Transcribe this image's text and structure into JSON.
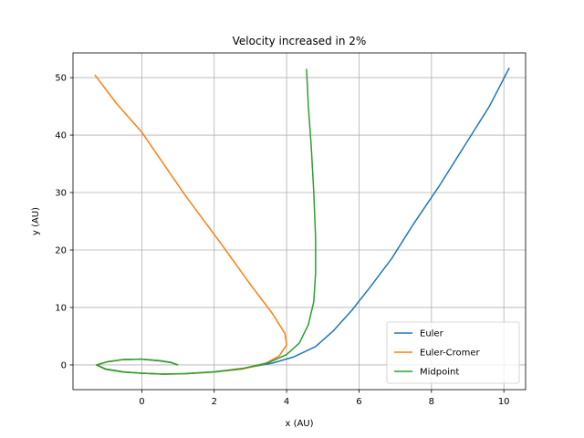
{
  "chart_data": {
    "type": "line",
    "title": "Velocity increased in 2%",
    "xlabel": "x (AU)",
    "ylabel": "y (AU)",
    "xlim": [
      -1.9,
      10.6
    ],
    "ylim": [
      -4.3,
      54.3
    ],
    "x_ticks": [
      0,
      2,
      4,
      6,
      8,
      10
    ],
    "y_ticks": [
      0,
      10,
      20,
      30,
      40,
      50
    ],
    "grid": true,
    "legend_position": "lower-right",
    "series": [
      {
        "name": "Euler",
        "color": "#1f77b4",
        "points": [
          [
            1.0,
            0.0
          ],
          [
            0.8,
            0.4
          ],
          [
            0.5,
            0.7
          ],
          [
            0.0,
            1.0
          ],
          [
            -0.5,
            0.95
          ],
          [
            -0.95,
            0.55
          ],
          [
            -1.25,
            0.0
          ],
          [
            -1.0,
            -0.7
          ],
          [
            -0.5,
            -1.2
          ],
          [
            0.0,
            -1.45
          ],
          [
            0.6,
            -1.6
          ],
          [
            1.2,
            -1.55
          ],
          [
            2.0,
            -1.2
          ],
          [
            2.8,
            -0.6
          ],
          [
            3.6,
            0.3
          ],
          [
            4.2,
            1.4
          ],
          [
            4.8,
            3.2
          ],
          [
            5.3,
            6.0
          ],
          [
            5.8,
            9.5
          ],
          [
            6.3,
            13.5
          ],
          [
            6.9,
            18.5
          ],
          [
            7.5,
            24.5
          ],
          [
            8.2,
            31.0
          ],
          [
            8.9,
            38.0
          ],
          [
            9.6,
            45.0
          ],
          [
            10.15,
            51.7
          ]
        ]
      },
      {
        "name": "Euler-Cromer",
        "color": "#ff7f0e",
        "points": [
          [
            1.0,
            0.0
          ],
          [
            0.8,
            0.45
          ],
          [
            0.5,
            0.75
          ],
          [
            0.0,
            1.0
          ],
          [
            -0.5,
            0.95
          ],
          [
            -0.95,
            0.55
          ],
          [
            -1.25,
            0.0
          ],
          [
            -1.0,
            -0.75
          ],
          [
            -0.5,
            -1.25
          ],
          [
            0.0,
            -1.45
          ],
          [
            0.6,
            -1.6
          ],
          [
            1.2,
            -1.55
          ],
          [
            2.0,
            -1.25
          ],
          [
            2.8,
            -0.7
          ],
          [
            3.4,
            0.2
          ],
          [
            3.8,
            1.6
          ],
          [
            4.0,
            3.5
          ],
          [
            3.95,
            5.5
          ],
          [
            3.6,
            9.0
          ],
          [
            3.0,
            14.0
          ],
          [
            2.2,
            21.0
          ],
          [
            1.2,
            29.5
          ],
          [
            0.0,
            40.5
          ],
          [
            -0.7,
            45.5
          ],
          [
            -1.3,
            50.5
          ]
        ]
      },
      {
        "name": "Midpoint",
        "color": "#2ca02c",
        "points": [
          [
            1.0,
            0.0
          ],
          [
            0.8,
            0.45
          ],
          [
            0.5,
            0.75
          ],
          [
            0.0,
            1.0
          ],
          [
            -0.5,
            0.95
          ],
          [
            -0.95,
            0.55
          ],
          [
            -1.25,
            0.0
          ],
          [
            -1.0,
            -0.75
          ],
          [
            -0.5,
            -1.25
          ],
          [
            0.0,
            -1.45
          ],
          [
            0.6,
            -1.6
          ],
          [
            1.2,
            -1.5
          ],
          [
            2.0,
            -1.2
          ],
          [
            2.8,
            -0.6
          ],
          [
            3.5,
            0.4
          ],
          [
            4.0,
            1.8
          ],
          [
            4.35,
            3.8
          ],
          [
            4.6,
            7.0
          ],
          [
            4.75,
            11.0
          ],
          [
            4.8,
            16.0
          ],
          [
            4.8,
            22.0
          ],
          [
            4.75,
            30.0
          ],
          [
            4.68,
            38.0
          ],
          [
            4.6,
            45.0
          ],
          [
            4.55,
            51.5
          ]
        ]
      }
    ]
  }
}
